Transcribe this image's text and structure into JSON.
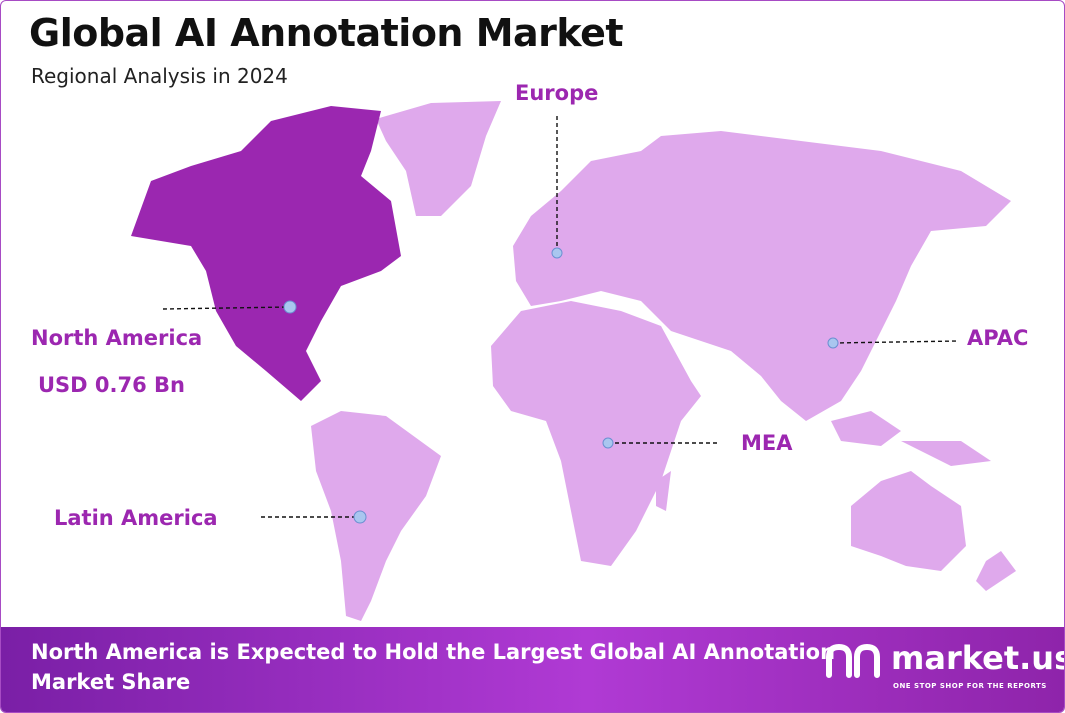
{
  "header": {
    "title": "Global AI Annotation Market",
    "subtitle": "Regional Analysis in 2024"
  },
  "regions": [
    {
      "label": "North America",
      "value": "USD 0.76 Bn"
    },
    {
      "label": "Europe"
    },
    {
      "label": "APAC"
    },
    {
      "label": "MEA"
    },
    {
      "label": "Latin America"
    }
  ],
  "footer": {
    "text": "North America is Expected to Hold the Largest Global AI Annotation Market Share",
    "logo": "market.us",
    "tagline": "ONE STOP SHOP FOR THE REPORTS"
  }
}
